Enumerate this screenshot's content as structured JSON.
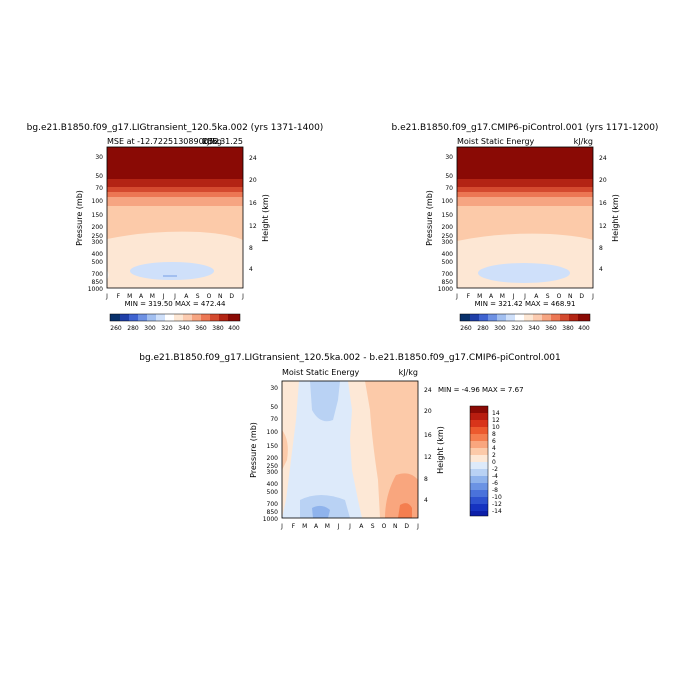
{
  "chart_data": [
    {
      "type": "heatmap",
      "title": "bg.e21.B1850.f09_g17.LIGtransient_120.5ka.002 (yrs 1371-1400)",
      "subtitle_left": "MSE at -12.7225130890052",
      "subtitle_right": "kJ/kg",
      "subtitle_extra": "235.31.25",
      "stats": "MIN = 319.50 MAX = 472.44",
      "xlabel": "",
      "ylabel": "Pressure (mb)",
      "ylabel_right": "Height (km)",
      "x_ticks": [
        "J",
        "F",
        "M",
        "A",
        "M",
        "J",
        "J",
        "A",
        "S",
        "O",
        "N",
        "D",
        "J"
      ],
      "y_ticks": [
        "30",
        "50",
        "70",
        "100",
        "150",
        "200",
        "250",
        "300",
        "400",
        "500",
        "700",
        "850",
        "1000"
      ],
      "height_ticks": [
        "4",
        "8",
        "12",
        "16",
        "20",
        "24"
      ],
      "colorbar_labels": [
        "260",
        "280",
        "300",
        "320",
        "340",
        "360",
        "380",
        "400"
      ],
      "colorbar_colors": [
        "#08306b",
        "#1f3fa8",
        "#3f63d0",
        "#6e91e3",
        "#a2bff0",
        "#cfe0fa",
        "#ffffff",
        "#fde7d4",
        "#fbcbb0",
        "#f6a582",
        "#ec7754",
        "#d44a2f",
        "#b32414",
        "#8a0a05"
      ]
    },
    {
      "type": "heatmap",
      "title": "b.e21.B1850.f09_g17.CMIP6-piControl.001 (yrs 1171-1200)",
      "subtitle_left": "Moist Static Energy",
      "subtitle_right": "kJ/kg",
      "stats": "MIN = 321.42 MAX = 468.91",
      "xlabel": "",
      "ylabel": "Pressure (mb)",
      "ylabel_right": "Height (km)",
      "x_ticks": [
        "J",
        "F",
        "M",
        "A",
        "M",
        "J",
        "J",
        "A",
        "S",
        "O",
        "N",
        "D",
        "J"
      ],
      "y_ticks": [
        "30",
        "50",
        "70",
        "100",
        "150",
        "200",
        "250",
        "300",
        "400",
        "500",
        "700",
        "850",
        "1000"
      ],
      "height_ticks": [
        "4",
        "8",
        "12",
        "16",
        "20",
        "24"
      ],
      "colorbar_labels": [
        "260",
        "280",
        "300",
        "320",
        "340",
        "360",
        "380",
        "400"
      ]
    },
    {
      "type": "heatmap",
      "title": "bg.e21.B1850.f09_g17.LIGtransient_120.5ka.002 - b.e21.B1850.f09_g17.CMIP6-piControl.001",
      "subtitle_left": "Moist Static Energy",
      "subtitle_right": "kJ/kg",
      "stats": "MIN = -4.96 MAX = 7.67",
      "xlabel": "",
      "ylabel": "Pressure (mb)",
      "ylabel_right": "Height (km)",
      "x_ticks": [
        "J",
        "F",
        "M",
        "A",
        "M",
        "J",
        "J",
        "A",
        "S",
        "O",
        "N",
        "D",
        "J"
      ],
      "y_ticks": [
        "30",
        "50",
        "70",
        "100",
        "150",
        "200",
        "250",
        "300",
        "400",
        "500",
        "700",
        "850",
        "1000"
      ],
      "height_ticks": [
        "4",
        "8",
        "12",
        "16",
        "20",
        "24"
      ],
      "colorbar_labels": [
        "14",
        "12",
        "10",
        "8",
        "6",
        "4",
        "2",
        "0",
        "-2",
        "-4",
        "-6",
        "-8",
        "-10",
        "-12",
        "-14"
      ],
      "colorbar_colors": [
        "#8a0a05",
        "#b81d10",
        "#d8341a",
        "#ec5a2e",
        "#f47e4f",
        "#f9a67e",
        "#fccaa9",
        "#fde8d6",
        "#ddeafa",
        "#b9d2f4",
        "#8fb3ec",
        "#6b93e4",
        "#4a72db",
        "#2e52cf",
        "#1633c0",
        "#0d1fa8"
      ]
    }
  ]
}
